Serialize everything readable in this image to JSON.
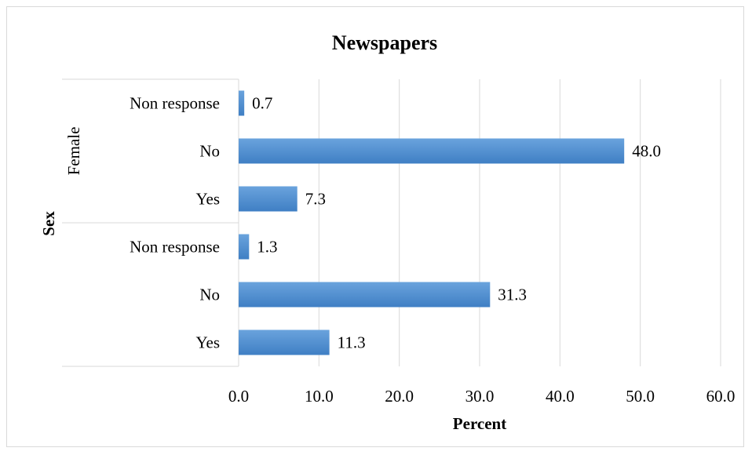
{
  "chart_data": {
    "type": "bar",
    "orientation": "horizontal",
    "title": "Newspapers",
    "xlabel": "Percent",
    "ylabel": "Sex",
    "xlim": [
      0,
      60
    ],
    "xticks": [
      "0.0",
      "10.0",
      "20.0",
      "30.0",
      "40.0",
      "50.0",
      "60.0"
    ],
    "grid": true,
    "legend": "none",
    "groups": [
      {
        "label": "Female",
        "categories": [
          "Non response",
          "No",
          "Yes"
        ],
        "values": [
          0.7,
          48.0,
          7.3
        ],
        "value_labels": [
          "0.7",
          "48.0",
          "7.3"
        ]
      },
      {
        "label": "",
        "categories": [
          "Non response",
          "No",
          "Yes"
        ],
        "values": [
          1.3,
          31.3,
          11.3
        ],
        "value_labels": [
          "1.3",
          "31.3",
          "11.3"
        ]
      }
    ],
    "colors": {
      "bar_top": "#6aa3dd",
      "bar_bottom": "#3f7fc4",
      "grid": "#d9d9d9"
    }
  }
}
